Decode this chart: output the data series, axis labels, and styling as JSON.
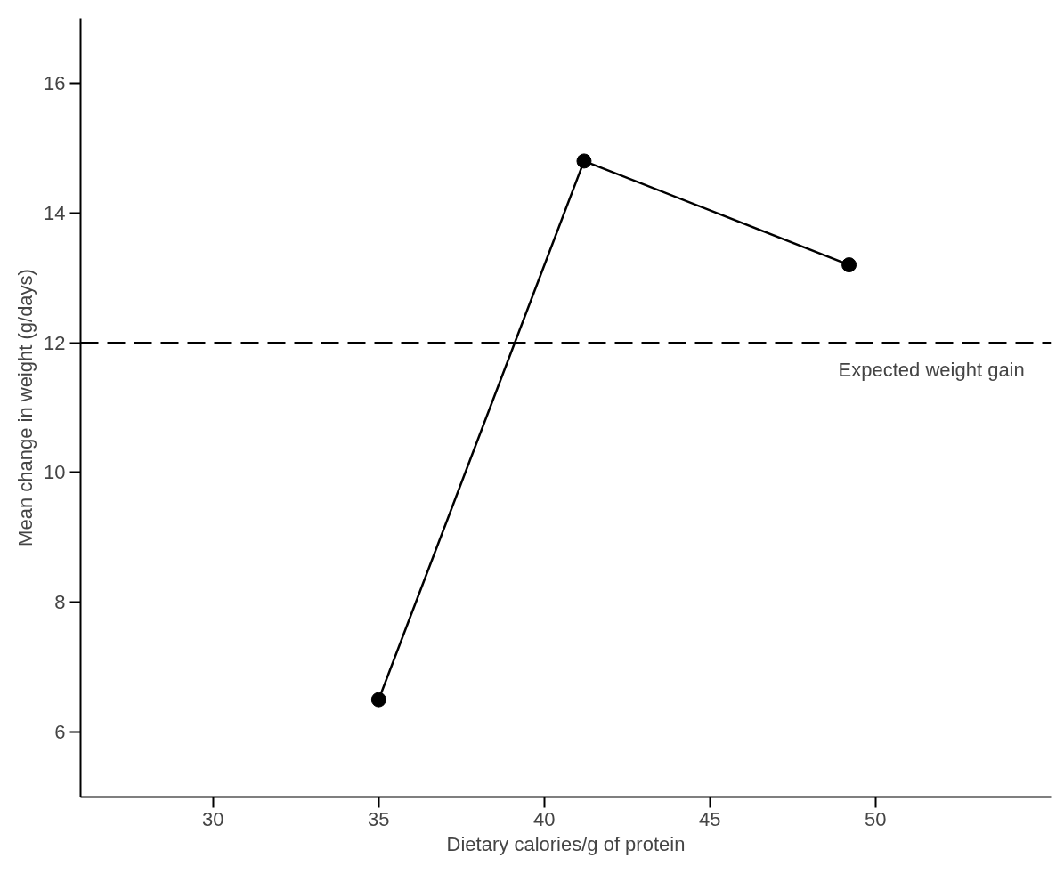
{
  "chart_data": {
    "type": "line",
    "xlabel": "Dietary calories/g of protein",
    "ylabel": "Mean change in weight (g/days)",
    "x": [
      35,
      41.2,
      49.2
    ],
    "series": [
      {
        "color": "#000000",
        "values": [
          6.5,
          14.8,
          13.2
        ]
      }
    ],
    "xlim": [
      26,
      55.3
    ],
    "ylim": [
      5,
      17
    ],
    "xticks": [
      30,
      35,
      40,
      45,
      50
    ],
    "yticks": [
      6,
      8,
      10,
      12,
      14,
      16
    ],
    "ref_lines": [
      {
        "axis": "y",
        "value": 12,
        "label": "Expected weight gain",
        "color": "#000000",
        "line_style": "dashed"
      }
    ],
    "grid": false,
    "marker": "circle",
    "line_style": "solid"
  }
}
